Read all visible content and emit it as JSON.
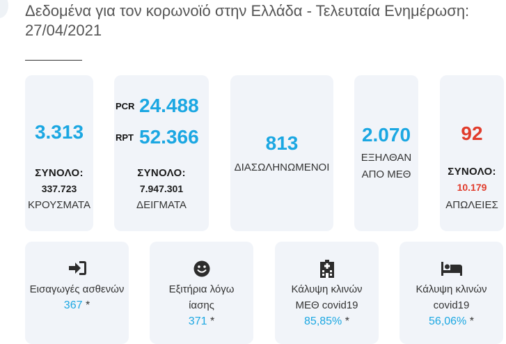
{
  "header": {
    "title": "Δεδομένα για τον κορωνοϊό στην Ελλάδα - Τελευταία Ενημέρωση: 27/04/2021"
  },
  "top_cards": {
    "cases": {
      "value": "3.313",
      "total_label": "ΣΥΝΟΛΟ:",
      "total_value": "337.723",
      "label": "ΚΡΟΥΣΜΑΤΑ"
    },
    "tests": {
      "pcr_label": "PCR",
      "pcr_value": "24.488",
      "rpt_label": "RPT",
      "rpt_value": "52.366",
      "total_label": "ΣΥΝΟΛΟ:",
      "total_value": "7.947.301",
      "label": "ΔΕΙΓΜΑΤΑ"
    },
    "intubated": {
      "value": "813",
      "label": "ΔΙΑΣΩΛΗΝΩΜΕΝΟΙ"
    },
    "icu_exits": {
      "value": "2.070",
      "label_line1": "ΕΞΗΛΘΑΝ",
      "label_line2": "ΑΠΟ ΜΕΘ"
    },
    "deaths": {
      "value": "92",
      "total_label": "ΣΥΝΟΛΟ:",
      "total_value": "10.179",
      "label": "ΑΠΩΛΕΙΕΣ"
    }
  },
  "bottom_cards": {
    "admissions": {
      "icon": "sign-in-icon",
      "label": "Εισαγωγές ασθενών",
      "value": "367",
      "mark": "*"
    },
    "discharges": {
      "icon": "smile-icon",
      "label_line1": "Εξιτήρια λόγω",
      "label_line2": "ίασης",
      "value": "371",
      "mark": "*"
    },
    "icu_beds": {
      "icon": "hospital-icon",
      "label_line1": "Κάλυψη κλινών",
      "label_line2": "ΜΕΘ covid19",
      "value": "85,85%",
      "mark": "*"
    },
    "covid_beds": {
      "icon": "bed-icon",
      "label_line1": "Κάλυψη κλινών",
      "label_line2": "covid19",
      "value": "56,06%",
      "mark": "*"
    }
  },
  "colors": {
    "accent": "#1ba7e2",
    "danger": "#e13c2c",
    "card": "#f1f4f9"
  }
}
